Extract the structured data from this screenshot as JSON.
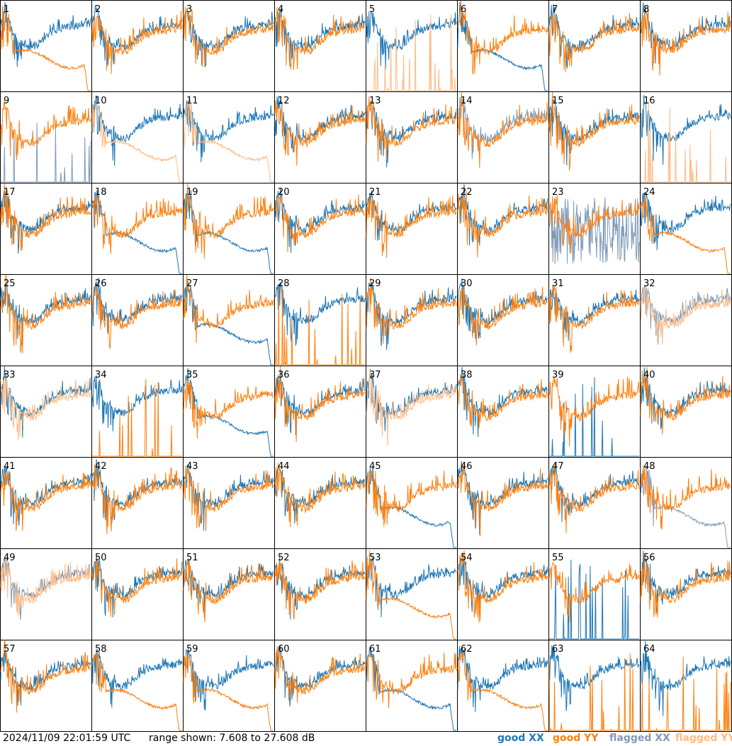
{
  "chart_data": {
    "type": "line",
    "description_units": "dB",
    "x": "frequency channel (unlabeled)",
    "ylim": [
      7.608,
      27.608
    ],
    "tiles": [
      {
        "id": "1",
        "xx": "good",
        "yy": "good",
        "shape": "yy_dropoff"
      },
      {
        "id": "2",
        "xx": "good",
        "yy": "good",
        "shape": "normal"
      },
      {
        "id": "3",
        "xx": "good",
        "yy": "good",
        "shape": "normal"
      },
      {
        "id": "4",
        "xx": "good",
        "yy": "good",
        "shape": "normal"
      },
      {
        "id": "5",
        "xx": "good",
        "yy": "flagged",
        "shape": "yy_spikes"
      },
      {
        "id": "6",
        "xx": "good",
        "yy": "good",
        "shape": "xx_dropoff"
      },
      {
        "id": "7",
        "xx": "good",
        "yy": "good",
        "shape": "normal"
      },
      {
        "id": "8",
        "xx": "good",
        "yy": "good",
        "shape": "normal"
      },
      {
        "id": "9",
        "xx": "flagged",
        "yy": "good",
        "shape": "xx_spikes"
      },
      {
        "id": "10",
        "xx": "good",
        "yy": "flagged",
        "shape": "yy_dropoff"
      },
      {
        "id": "11",
        "xx": "good",
        "yy": "flagged",
        "shape": "yy_dropoff"
      },
      {
        "id": "12",
        "xx": "good",
        "yy": "good",
        "shape": "normal"
      },
      {
        "id": "13",
        "xx": "good",
        "yy": "good",
        "shape": "normal"
      },
      {
        "id": "14",
        "xx": "flagged",
        "yy": "good",
        "shape": "normal"
      },
      {
        "id": "15",
        "xx": "good",
        "yy": "good",
        "shape": "normal"
      },
      {
        "id": "16",
        "xx": "good",
        "yy": "flagged",
        "shape": "yy_spikes"
      },
      {
        "id": "17",
        "xx": "good",
        "yy": "good",
        "shape": "normal"
      },
      {
        "id": "18",
        "xx": "good",
        "yy": "good",
        "shape": "xx_dropoff"
      },
      {
        "id": "19",
        "xx": "good",
        "yy": "good",
        "shape": "xx_dropoff"
      },
      {
        "id": "20",
        "xx": "good",
        "yy": "good",
        "shape": "normal"
      },
      {
        "id": "21",
        "xx": "good",
        "yy": "good",
        "shape": "normal"
      },
      {
        "id": "22",
        "xx": "good",
        "yy": "good",
        "shape": "normal"
      },
      {
        "id": "23",
        "xx": "flagged",
        "yy": "good",
        "shape": "xx_noisy"
      },
      {
        "id": "24",
        "xx": "good",
        "yy": "good",
        "shape": "yy_dropoff"
      },
      {
        "id": "25",
        "xx": "good",
        "yy": "good",
        "shape": "normal"
      },
      {
        "id": "26",
        "xx": "good",
        "yy": "good",
        "shape": "normal"
      },
      {
        "id": "27",
        "xx": "good",
        "yy": "good",
        "shape": "xx_dropoff"
      },
      {
        "id": "28",
        "xx": "good",
        "yy": "good",
        "shape": "yy_spikes"
      },
      {
        "id": "29",
        "xx": "good",
        "yy": "good",
        "shape": "normal"
      },
      {
        "id": "30",
        "xx": "good",
        "yy": "good",
        "shape": "normal"
      },
      {
        "id": "31",
        "xx": "good",
        "yy": "good",
        "shape": "normal"
      },
      {
        "id": "32",
        "xx": "flagged",
        "yy": "flagged",
        "shape": "normal"
      },
      {
        "id": "33",
        "xx": "good",
        "yy": "flagged",
        "shape": "normal"
      },
      {
        "id": "34",
        "xx": "good",
        "yy": "good",
        "shape": "yy_spikes"
      },
      {
        "id": "35",
        "xx": "good",
        "yy": "good",
        "shape": "xx_dropoff"
      },
      {
        "id": "36",
        "xx": "good",
        "yy": "good",
        "shape": "normal"
      },
      {
        "id": "37",
        "xx": "good",
        "yy": "flagged",
        "shape": "normal"
      },
      {
        "id": "38",
        "xx": "good",
        "yy": "good",
        "shape": "normal"
      },
      {
        "id": "39",
        "xx": "good",
        "yy": "good",
        "shape": "xx_spikes"
      },
      {
        "id": "40",
        "xx": "good",
        "yy": "good",
        "shape": "normal"
      },
      {
        "id": "41",
        "xx": "good",
        "yy": "good",
        "shape": "normal"
      },
      {
        "id": "42",
        "xx": "good",
        "yy": "good",
        "shape": "normal"
      },
      {
        "id": "43",
        "xx": "good",
        "yy": "good",
        "shape": "normal"
      },
      {
        "id": "44",
        "xx": "good",
        "yy": "good",
        "shape": "normal"
      },
      {
        "id": "45",
        "xx": "good",
        "yy": "good",
        "shape": "xx_dropoff"
      },
      {
        "id": "46",
        "xx": "good",
        "yy": "good",
        "shape": "normal"
      },
      {
        "id": "47",
        "xx": "good",
        "yy": "good",
        "shape": "normal"
      },
      {
        "id": "48",
        "xx": "flagged",
        "yy": "good",
        "shape": "xx_dropoff"
      },
      {
        "id": "49",
        "xx": "flagged",
        "yy": "flagged",
        "shape": "normal"
      },
      {
        "id": "50",
        "xx": "good",
        "yy": "good",
        "shape": "normal"
      },
      {
        "id": "51",
        "xx": "good",
        "yy": "good",
        "shape": "normal"
      },
      {
        "id": "52",
        "xx": "good",
        "yy": "good",
        "shape": "normal"
      },
      {
        "id": "53",
        "xx": "good",
        "yy": "good",
        "shape": "yy_dropoff"
      },
      {
        "id": "54",
        "xx": "good",
        "yy": "good",
        "shape": "normal"
      },
      {
        "id": "55",
        "xx": "good",
        "yy": "good",
        "shape": "xx_spikes"
      },
      {
        "id": "56",
        "xx": "good",
        "yy": "good",
        "shape": "normal"
      },
      {
        "id": "57",
        "xx": "good",
        "yy": "good",
        "shape": "normal"
      },
      {
        "id": "58",
        "xx": "good",
        "yy": "good",
        "shape": "yy_dropoff"
      },
      {
        "id": "59",
        "xx": "good",
        "yy": "good",
        "shape": "yy_dropoff"
      },
      {
        "id": "60",
        "xx": "good",
        "yy": "good",
        "shape": "normal"
      },
      {
        "id": "61",
        "xx": "good",
        "yy": "good",
        "shape": "xx_dropoff"
      },
      {
        "id": "62",
        "xx": "good",
        "yy": "good",
        "shape": "yy_dropoff"
      },
      {
        "id": "63",
        "xx": "good",
        "yy": "good",
        "shape": "yy_spikes"
      },
      {
        "id": "64",
        "xx": "good",
        "yy": "good",
        "shape": "yy_spikes"
      }
    ],
    "legend": [
      {
        "label": "good XX",
        "color": "#1f77b4"
      },
      {
        "label": "good YY",
        "color": "#ff7f0e"
      },
      {
        "label": "flagged XX",
        "color": "#7f9ab8"
      },
      {
        "label": "flagged YY",
        "color": "#ffbb85"
      }
    ]
  },
  "footer": {
    "timestamp": "2024/11/09 22:01:59 UTC",
    "range_text": "range shown: 7.608 to 27.608 dB"
  },
  "colors": {
    "good_xx": "#1f77b4",
    "good_yy": "#ff7f0e",
    "flagged_xx": "#7f9ab8",
    "flagged_yy": "#ffbb85"
  }
}
